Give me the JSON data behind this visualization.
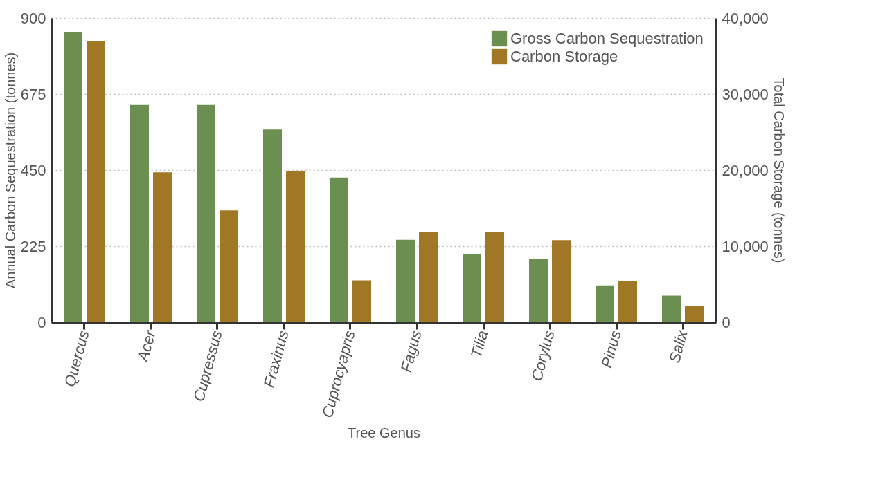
{
  "chart_data": {
    "type": "bar",
    "xlabel": "Tree Genus",
    "ylabel": "Annual Carbon Sequestration (tonnes)",
    "y2label": "Total Carbon Storage (tonnes)",
    "categories": [
      "Quercus",
      "Acer",
      "Cupressus",
      "Fraxinus",
      "Cuprocyapris",
      "Fagus",
      "Tilia",
      "Corylus",
      "Pinus",
      "Salix"
    ],
    "series": [
      {
        "name": "Gross Carbon Sequestration",
        "color": "#6a8f50",
        "values": [
          858,
          643,
          643,
          570,
          428,
          244,
          201,
          186,
          109,
          79
        ]
      },
      {
        "name": "Carbon Storage",
        "color": "#a07724",
        "axis": "y2",
        "values": [
          36900,
          19700,
          14700,
          19900,
          5500,
          11900,
          11900,
          10800,
          5400,
          2100
        ]
      }
    ],
    "ylim": [
      0,
      900
    ],
    "yticks": [
      0,
      225,
      450,
      675,
      900
    ],
    "y2lim": [
      0,
      40000
    ],
    "y2ticks": [
      {
        "value": 0,
        "label": "0"
      },
      {
        "value": 10000,
        "label": "10,000"
      },
      {
        "value": 20000,
        "label": "20,000"
      },
      {
        "value": 30000,
        "label": "30,000"
      },
      {
        "value": 40000,
        "label": "40,000"
      }
    ],
    "grid": "y",
    "legend": "top right"
  }
}
